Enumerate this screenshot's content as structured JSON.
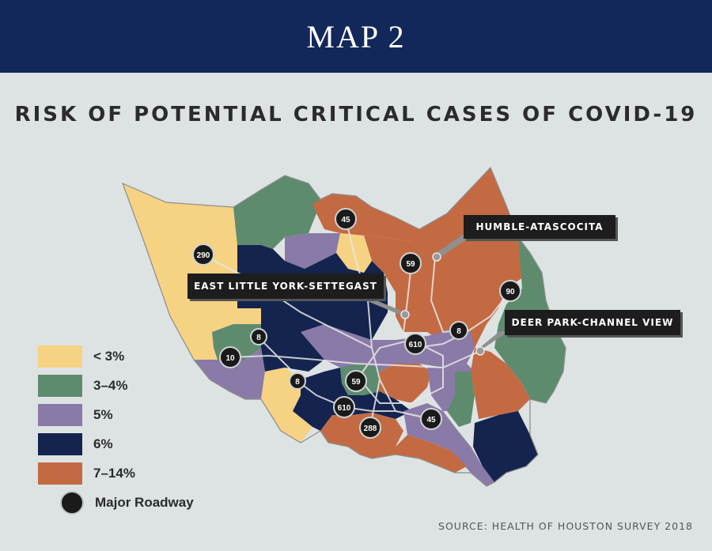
{
  "banner": {
    "title": "MAP 2"
  },
  "headline": "RISK OF POTENTIAL CRITICAL CASES OF COVID-19",
  "colors": {
    "lt3": "#f6d283",
    "r3to4": "#5e8b6e",
    "r5": "#8a7aa8",
    "r6": "#14244f",
    "r7to14": "#c36a43",
    "banner": "#13285a",
    "background": "#dde3e3"
  },
  "legend": {
    "items": [
      {
        "label": "< 3%",
        "color": "#f6d283"
      },
      {
        "label": "3–4%",
        "color": "#5e8b6e"
      },
      {
        "label": "5%",
        "color": "#8a7aa8"
      },
      {
        "label": "6%",
        "color": "#14244f"
      },
      {
        "label": "7–14%",
        "color": "#c36a43"
      }
    ],
    "road_label": "Major Roadway"
  },
  "callouts": {
    "humble": "HUMBLE-ATASCOCITA",
    "east_little_york": "EAST LITTLE YORK-SETTEGAST",
    "deer_park": "DEER PARK-CHANNEL VIEW"
  },
  "roads": [
    "45",
    "290",
    "59",
    "90",
    "8",
    "610",
    "8",
    "10",
    "8",
    "59",
    "610",
    "288",
    "45"
  ],
  "source": "SOURCE: HEALTH OF HOUSTON SURVEY 2018"
}
